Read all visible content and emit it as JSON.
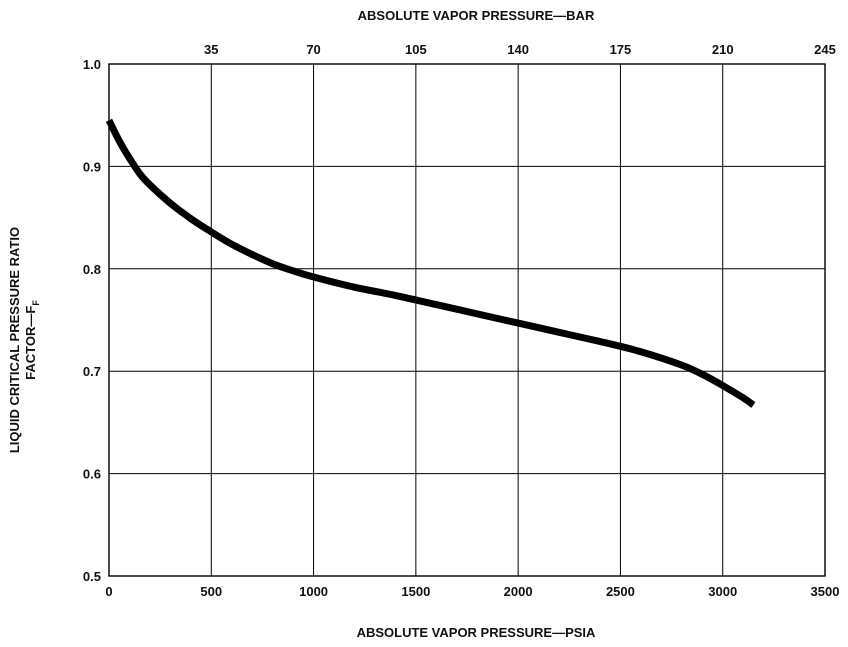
{
  "chart_data": {
    "type": "line",
    "title": "",
    "xlabel": "ABSOLUTE VAPOR PRESSURE—PSIA",
    "x2label": "ABSOLUTE VAPOR PRESSURE—BAR",
    "ylabel_line1": "LIQUID CRITICAL PRESSURE RATIO",
    "ylabel_line2_main": "FACTOR—F",
    "ylabel_line2_sub": "F",
    "xlim": [
      0,
      3500
    ],
    "x2lim": [
      0,
      245
    ],
    "ylim": [
      0.5,
      1.0
    ],
    "xticks": [
      0,
      500,
      1000,
      1500,
      2000,
      2500,
      3000,
      3500
    ],
    "x2ticks": [
      35,
      70,
      105,
      140,
      175,
      210,
      245
    ],
    "yticks": [
      0.5,
      0.6,
      0.7,
      0.8,
      0.9,
      1.0
    ],
    "grid": true,
    "series": [
      {
        "x": [
          0,
          50,
          100,
          150,
          200,
          300,
          400,
          500,
          600,
          700,
          800,
          900,
          1000,
          1200,
          1400,
          1600,
          1800,
          2000,
          2200,
          2400,
          2600,
          2800,
          2900,
          3000,
          3100,
          3150
        ],
        "y": [
          0.945,
          0.925,
          0.908,
          0.893,
          0.882,
          0.864,
          0.849,
          0.836,
          0.824,
          0.814,
          0.805,
          0.798,
          0.792,
          0.782,
          0.774,
          0.765,
          0.756,
          0.747,
          0.738,
          0.729,
          0.719,
          0.706,
          0.697,
          0.686,
          0.674,
          0.667
        ]
      }
    ]
  }
}
